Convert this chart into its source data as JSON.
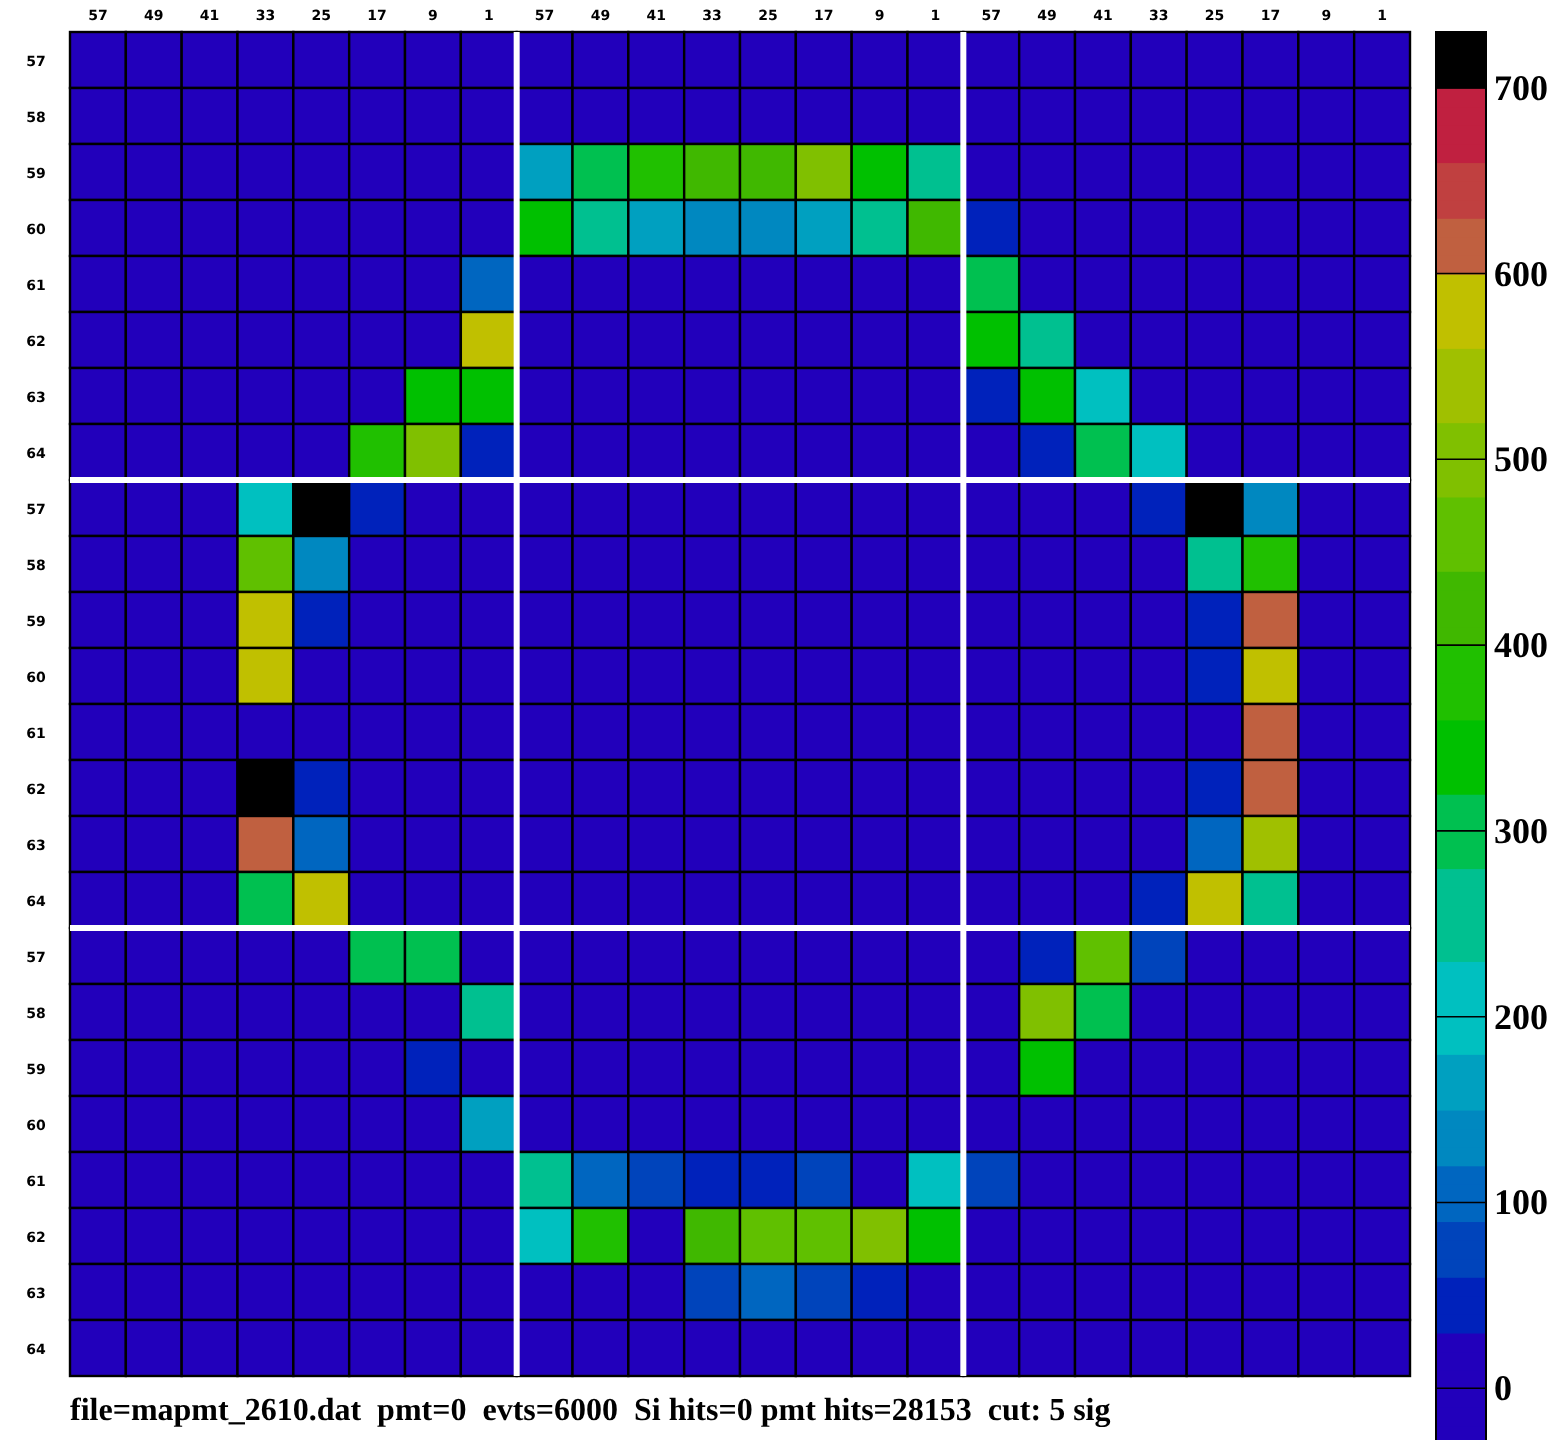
{
  "chart_data": {
    "type": "heatmap",
    "categories": [
      "57",
      "49",
      "41",
      "33",
      "25",
      "17",
      "9",
      "1",
      "57",
      "49",
      "41",
      "33",
      "25",
      "17",
      "9",
      "1",
      "57",
      "49",
      "41",
      "33",
      "25",
      "17",
      "9",
      "1"
    ],
    "y_categories": [
      "57",
      "58",
      "59",
      "60",
      "61",
      "62",
      "63",
      "64",
      "57",
      "58",
      "59",
      "60",
      "61",
      "62",
      "63",
      "64",
      "57",
      "58",
      "59",
      "60",
      "61",
      "62",
      "63",
      "64"
    ],
    "cells": [
      [
        0,
        0,
        0,
        0,
        0,
        0,
        0,
        0,
        0,
        0,
        0,
        0,
        0,
        0,
        0,
        0,
        0,
        0,
        0,
        0,
        0,
        0,
        0,
        0
      ],
      [
        0,
        0,
        0,
        0,
        0,
        0,
        0,
        0,
        0,
        0,
        0,
        0,
        0,
        0,
        0,
        0,
        0,
        0,
        0,
        0,
        0,
        0,
        0,
        0
      ],
      [
        0,
        0,
        0,
        0,
        0,
        0,
        0,
        0,
        170,
        300,
        370,
        420,
        420,
        510,
        350,
        260,
        0,
        0,
        0,
        0,
        0,
        0,
        0,
        0
      ],
      [
        0,
        0,
        0,
        0,
        0,
        0,
        0,
        0,
        350,
        260,
        170,
        130,
        130,
        170,
        260,
        420,
        50,
        0,
        0,
        0,
        0,
        0,
        0,
        0
      ],
      [
        0,
        0,
        0,
        0,
        0,
        0,
        0,
        100,
        0,
        0,
        0,
        0,
        0,
        0,
        0,
        0,
        300,
        0,
        0,
        0,
        0,
        0,
        0,
        0
      ],
      [
        0,
        0,
        0,
        0,
        0,
        0,
        0,
        580,
        0,
        0,
        0,
        0,
        0,
        0,
        0,
        0,
        350,
        260,
        0,
        0,
        0,
        0,
        0,
        0
      ],
      [
        0,
        0,
        0,
        0,
        0,
        0,
        350,
        350,
        0,
        0,
        0,
        0,
        0,
        0,
        0,
        0,
        50,
        350,
        200,
        0,
        0,
        0,
        0,
        0
      ],
      [
        0,
        0,
        0,
        0,
        0,
        360,
        510,
        50,
        0,
        0,
        0,
        0,
        0,
        0,
        0,
        0,
        0,
        50,
        300,
        200,
        0,
        0,
        0,
        0
      ],
      [
        0,
        0,
        0,
        200,
        720,
        50,
        0,
        0,
        0,
        0,
        0,
        0,
        0,
        0,
        0,
        0,
        0,
        0,
        0,
        50,
        720,
        130,
        0,
        0
      ],
      [
        0,
        0,
        0,
        460,
        130,
        0,
        0,
        0,
        0,
        0,
        0,
        0,
        0,
        0,
        0,
        0,
        0,
        0,
        0,
        0,
        260,
        370,
        0,
        0
      ],
      [
        0,
        0,
        0,
        580,
        50,
        0,
        0,
        0,
        0,
        0,
        0,
        0,
        0,
        0,
        0,
        0,
        0,
        0,
        0,
        0,
        50,
        620,
        0,
        0
      ],
      [
        0,
        0,
        0,
        580,
        0,
        0,
        0,
        0,
        0,
        0,
        0,
        0,
        0,
        0,
        0,
        0,
        0,
        0,
        0,
        0,
        50,
        580,
        0,
        0
      ],
      [
        0,
        0,
        0,
        0,
        0,
        0,
        0,
        0,
        0,
        0,
        0,
        0,
        0,
        0,
        0,
        0,
        0,
        0,
        0,
        0,
        0,
        620,
        0,
        0
      ],
      [
        0,
        0,
        0,
        720,
        50,
        0,
        0,
        0,
        0,
        0,
        0,
        0,
        0,
        0,
        0,
        0,
        0,
        0,
        0,
        0,
        50,
        620,
        0,
        0
      ],
      [
        0,
        0,
        0,
        620,
        100,
        0,
        0,
        0,
        0,
        0,
        0,
        0,
        0,
        0,
        0,
        0,
        0,
        0,
        0,
        0,
        100,
        540,
        0,
        0
      ],
      [
        0,
        0,
        0,
        300,
        580,
        0,
        0,
        0,
        0,
        0,
        0,
        0,
        0,
        0,
        0,
        0,
        0,
        0,
        0,
        50,
        580,
        260,
        0,
        0
      ],
      [
        0,
        0,
        0,
        0,
        0,
        300,
        300,
        0,
        0,
        0,
        0,
        0,
        0,
        0,
        0,
        0,
        0,
        50,
        460,
        80,
        0,
        0,
        0,
        0
      ],
      [
        0,
        0,
        0,
        0,
        0,
        0,
        0,
        260,
        0,
        0,
        0,
        0,
        0,
        0,
        0,
        0,
        0,
        510,
        300,
        0,
        0,
        0,
        0,
        0
      ],
      [
        0,
        0,
        0,
        0,
        0,
        0,
        50,
        0,
        0,
        0,
        0,
        0,
        0,
        0,
        0,
        0,
        0,
        320,
        0,
        0,
        0,
        0,
        0,
        0
      ],
      [
        0,
        0,
        0,
        0,
        0,
        0,
        0,
        170,
        0,
        0,
        0,
        0,
        0,
        0,
        0,
        0,
        0,
        0,
        0,
        0,
        0,
        0,
        0,
        0
      ],
      [
        0,
        0,
        0,
        0,
        0,
        0,
        0,
        0,
        260,
        100,
        70,
        50,
        50,
        60,
        0,
        200,
        70,
        0,
        0,
        0,
        0,
        0,
        0,
        0
      ],
      [
        0,
        0,
        0,
        0,
        0,
        0,
        0,
        0,
        200,
        370,
        0,
        420,
        460,
        460,
        510,
        350,
        0,
        0,
        0,
        0,
        0,
        0,
        0,
        0
      ],
      [
        0,
        0,
        0,
        0,
        0,
        0,
        0,
        0,
        0,
        0,
        0,
        80,
        100,
        70,
        50,
        0,
        0,
        0,
        0,
        0,
        0,
        0,
        0,
        0
      ],
      [
        0,
        0,
        0,
        0,
        0,
        0,
        0,
        0,
        0,
        0,
        0,
        0,
        0,
        0,
        0,
        0,
        0,
        0,
        0,
        0,
        0,
        0,
        0,
        0
      ]
    ],
    "clim": [
      -30,
      730
    ],
    "cticks": [
      0,
      100,
      200,
      300,
      400,
      500,
      600,
      700
    ],
    "annotations": [
      "file=mapmt_2610.dat  pmt=0  evts=6000  Si hits=0 pmt hits=28153  cut: 5 sig"
    ]
  }
}
